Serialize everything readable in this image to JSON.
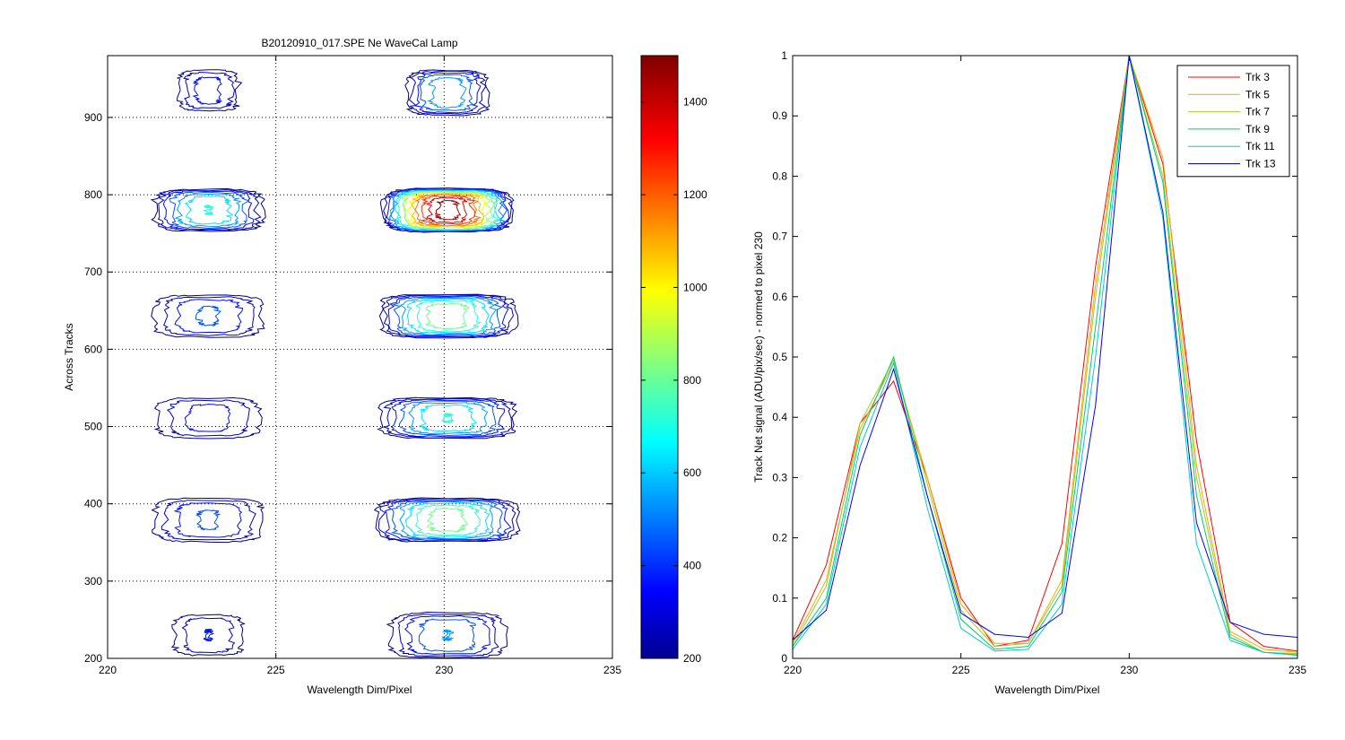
{
  "chart_data": [
    {
      "type": "contour",
      "title": "B20120910_017.SPE  Ne WaveCal Lamp",
      "xlabel": "Wavelength Dim/Pixel",
      "ylabel": "Across Tracks",
      "xlim": [
        220,
        235
      ],
      "ylim": [
        200,
        980
      ],
      "xticks": [
        220,
        225,
        230,
        235
      ],
      "yticks": [
        200,
        300,
        400,
        500,
        600,
        700,
        800,
        900
      ],
      "grid": true,
      "colormap": "jet",
      "colorbar": {
        "limits": [
          200,
          1500
        ],
        "ticks": [
          200,
          400,
          600,
          800,
          1000,
          1200,
          1400
        ]
      },
      "blobs": [
        {
          "x": 223.0,
          "xhalf": 0.9,
          "y": 935,
          "yhalf": 26,
          "peak": 420
        },
        {
          "x": 230.1,
          "xhalf": 1.2,
          "y": 932,
          "yhalf": 29,
          "peak": 640
        },
        {
          "x": 223.0,
          "xhalf": 1.6,
          "y": 780,
          "yhalf": 27,
          "peak": 740
        },
        {
          "x": 230.1,
          "xhalf": 1.9,
          "y": 780,
          "yhalf": 28,
          "peak": 1500
        },
        {
          "x": 223.0,
          "xhalf": 1.6,
          "y": 643,
          "yhalf": 27,
          "peak": 480
        },
        {
          "x": 230.1,
          "xhalf": 2.0,
          "y": 643,
          "yhalf": 28,
          "peak": 900
        },
        {
          "x": 223.0,
          "xhalf": 1.5,
          "y": 511,
          "yhalf": 26,
          "peak": 420
        },
        {
          "x": 230.1,
          "xhalf": 2.0,
          "y": 511,
          "yhalf": 26,
          "peak": 740
        },
        {
          "x": 223.0,
          "xhalf": 1.6,
          "y": 379,
          "yhalf": 28,
          "peak": 480
        },
        {
          "x": 230.1,
          "xhalf": 2.1,
          "y": 379,
          "yhalf": 28,
          "peak": 880
        },
        {
          "x": 223.0,
          "xhalf": 1.0,
          "y": 230,
          "yhalf": 26,
          "peak": 380
        },
        {
          "x": 230.1,
          "xhalf": 1.7,
          "y": 230,
          "yhalf": 29,
          "peak": 560
        }
      ]
    },
    {
      "type": "line",
      "xlabel": "Wavelength Dim/Pixel",
      "ylabel": "Track Net signal (ADU/pix/sec) - normed to pixel 230",
      "xlim": [
        220,
        235
      ],
      "ylim": [
        0,
        1
      ],
      "xticks": [
        220,
        225,
        230,
        235
      ],
      "yticks": [
        0,
        0.1,
        0.2,
        0.3,
        0.4,
        0.5,
        0.6,
        0.7,
        0.8,
        0.9,
        1
      ],
      "ytick_labels": [
        "0",
        "0.1",
        "0.2",
        "0.3",
        "0.4",
        "0.5",
        "0.6",
        "0.7",
        "0.8",
        "0.9",
        "1"
      ],
      "grid": false,
      "legend_position": "top-right",
      "x": [
        220,
        221,
        222,
        223,
        224,
        225,
        226,
        227,
        228,
        229,
        230,
        231,
        232,
        233,
        234,
        235
      ],
      "series": [
        {
          "name": "Trk 3",
          "color": "#ff0000",
          "values": [
            0.03,
            0.155,
            0.39,
            0.46,
            0.3,
            0.1,
            0.02,
            0.03,
            0.19,
            0.65,
            1.0,
            0.82,
            0.36,
            0.06,
            0.02,
            0.012
          ]
        },
        {
          "name": "Trk 5",
          "color": "#ffa500",
          "values": [
            0.025,
            0.13,
            0.38,
            0.49,
            0.3,
            0.09,
            0.025,
            0.025,
            0.13,
            0.62,
            1.0,
            0.83,
            0.32,
            0.045,
            0.015,
            0.01
          ]
        },
        {
          "name": "Trk 7",
          "color": "#9acd32",
          "values": [
            0.02,
            0.12,
            0.39,
            0.495,
            0.29,
            0.08,
            0.02,
            0.025,
            0.12,
            0.6,
            1.0,
            0.8,
            0.3,
            0.04,
            0.01,
            0.008
          ]
        },
        {
          "name": "Trk 9",
          "color": "#00cc66",
          "values": [
            0.02,
            0.1,
            0.37,
            0.5,
            0.27,
            0.065,
            0.015,
            0.02,
            0.11,
            0.55,
            1.0,
            0.79,
            0.27,
            0.035,
            0.01,
            0.006
          ]
        },
        {
          "name": "Trk 11",
          "color": "#00cccc",
          "values": [
            0.015,
            0.09,
            0.35,
            0.49,
            0.25,
            0.05,
            0.012,
            0.015,
            0.09,
            0.5,
            1.0,
            0.73,
            0.19,
            0.03,
            0.01,
            0.005
          ]
        },
        {
          "name": "Trk 13",
          "color": "#0000ff",
          "values": [
            0.03,
            0.08,
            0.32,
            0.48,
            0.27,
            0.075,
            0.04,
            0.035,
            0.075,
            0.42,
            1.0,
            0.74,
            0.225,
            0.06,
            0.04,
            0.035
          ]
        }
      ]
    }
  ]
}
